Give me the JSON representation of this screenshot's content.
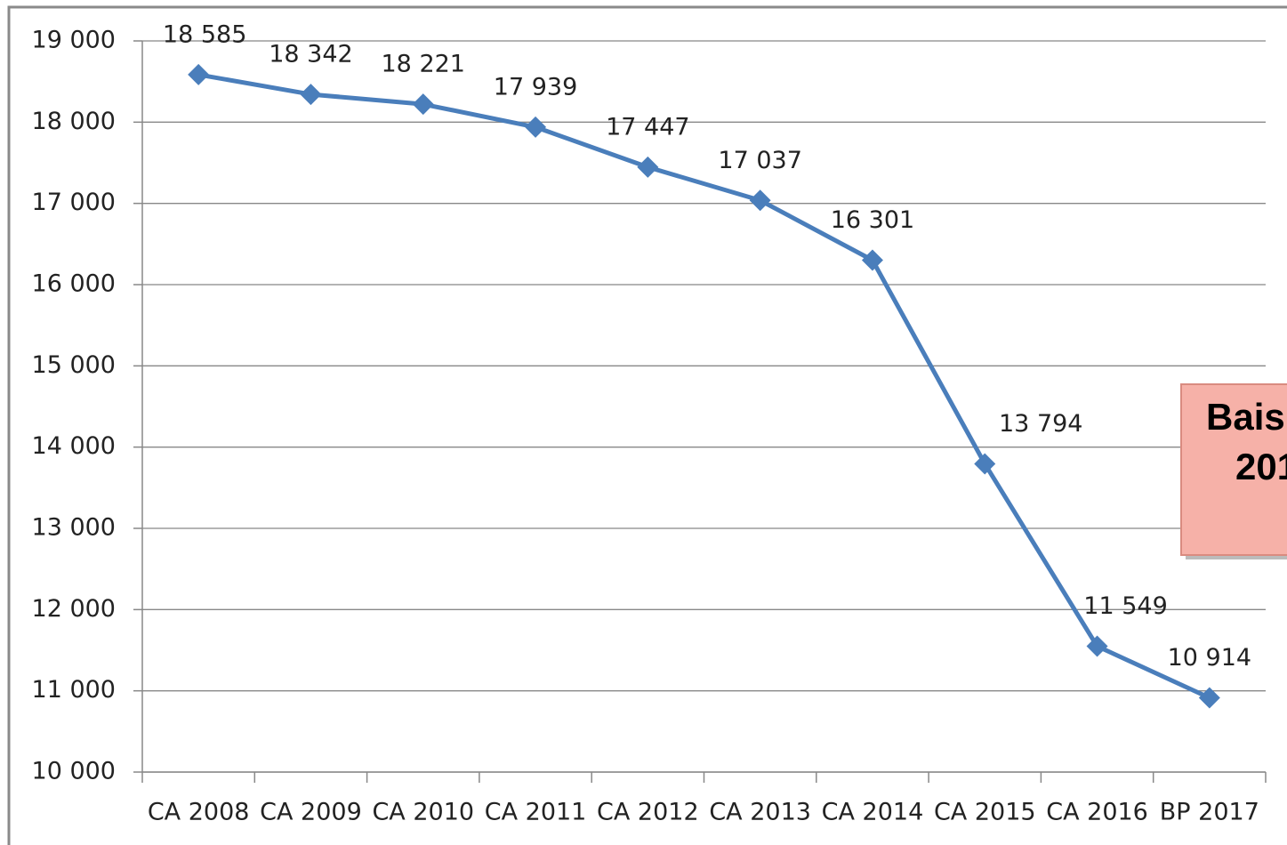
{
  "chart_data": {
    "type": "line",
    "categories": [
      "CA 2008",
      "CA 2009",
      "CA 2010",
      "CA 2011",
      "CA 2012",
      "CA 2013",
      "CA 2014",
      "CA 2015",
      "CA 2016",
      "BP 2017"
    ],
    "values": [
      18585,
      18342,
      18221,
      17939,
      17447,
      17037,
      16301,
      13794,
      11549,
      10914
    ],
    "value_labels": [
      "18 585",
      "18 342",
      "18 221",
      "17 939",
      "17 447",
      "17 037",
      "16 301",
      "13 794",
      "11 549",
      "10 914"
    ],
    "color": "#4a7ebb",
    "ylim": [
      10000,
      19000
    ],
    "yticks": [
      {
        "value": 10000,
        "label": "10 000"
      },
      {
        "value": 11000,
        "label": "11 000"
      },
      {
        "value": 12000,
        "label": "12 000"
      },
      {
        "value": 13000,
        "label": "13 000"
      },
      {
        "value": 14000,
        "label": "14 000"
      },
      {
        "value": 15000,
        "label": "15 000"
      },
      {
        "value": 16000,
        "label": "16 000"
      },
      {
        "value": 17000,
        "label": "17 000"
      },
      {
        "value": 18000,
        "label": "18 000"
      },
      {
        "value": 19000,
        "label": "19 000"
      }
    ],
    "grid": true,
    "annotation": [
      "Bais",
      "201"
    ]
  }
}
